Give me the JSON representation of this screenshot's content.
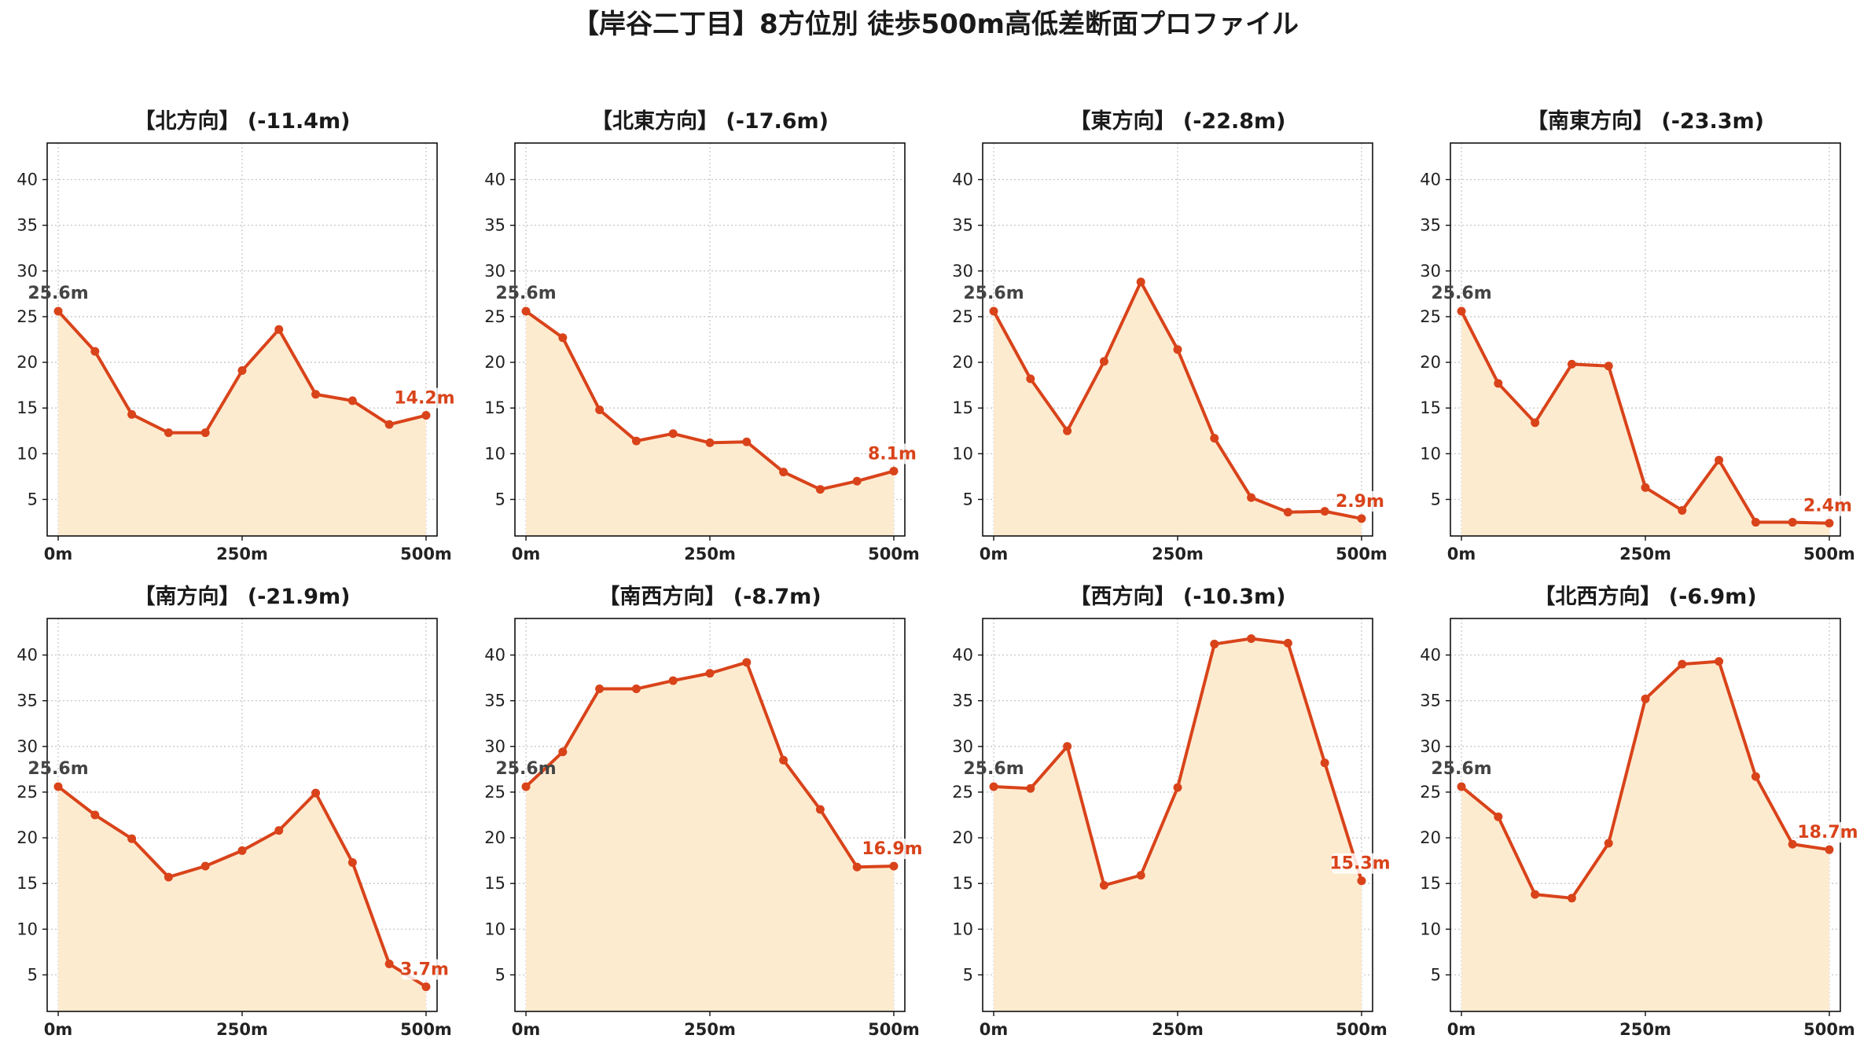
{
  "title": "【岸谷二丁目】8方位別 徒歩500m高低差断面プロファイル",
  "colors": {
    "line": "#d9431a",
    "fill": "#fdebd0",
    "grid": "#c8c8c8",
    "start_label": "#444444"
  },
  "chart_data": [
    {
      "type": "area",
      "title": "【北方向】 (-11.4m)",
      "x": [
        0,
        50,
        100,
        150,
        200,
        250,
        300,
        350,
        400,
        450,
        500
      ],
      "y": [
        25.6,
        21.2,
        14.3,
        12.3,
        12.3,
        19.1,
        23.6,
        16.5,
        15.8,
        13.2,
        14.2
      ],
      "x_ticks": [
        "0m",
        "250m",
        "500m"
      ],
      "y_ticks": [
        5,
        10,
        15,
        20,
        25,
        30,
        35,
        40
      ],
      "ylim": [
        1,
        44
      ],
      "xlim": [
        -15,
        515
      ],
      "grid": true,
      "start_label": "25.6m",
      "end_label": "14.2m"
    },
    {
      "type": "area",
      "title": "【北東方向】 (-17.6m)",
      "x": [
        0,
        50,
        100,
        150,
        200,
        250,
        300,
        350,
        400,
        450,
        500
      ],
      "y": [
        25.6,
        22.7,
        14.8,
        11.4,
        12.2,
        11.2,
        11.3,
        8.0,
        6.1,
        7.0,
        8.1
      ],
      "x_ticks": [
        "0m",
        "250m",
        "500m"
      ],
      "y_ticks": [
        5,
        10,
        15,
        20,
        25,
        30,
        35,
        40
      ],
      "ylim": [
        1,
        44
      ],
      "xlim": [
        -15,
        515
      ],
      "grid": true,
      "start_label": "25.6m",
      "end_label": "8.1m"
    },
    {
      "type": "area",
      "title": "【東方向】 (-22.8m)",
      "x": [
        0,
        50,
        100,
        150,
        200,
        250,
        300,
        350,
        400,
        450,
        500
      ],
      "y": [
        25.6,
        18.2,
        12.5,
        20.1,
        28.8,
        21.4,
        11.7,
        5.2,
        3.6,
        3.7,
        2.9
      ],
      "x_ticks": [
        "0m",
        "250m",
        "500m"
      ],
      "y_ticks": [
        5,
        10,
        15,
        20,
        25,
        30,
        35,
        40
      ],
      "ylim": [
        1,
        44
      ],
      "xlim": [
        -15,
        515
      ],
      "grid": true,
      "start_label": "25.6m",
      "end_label": "2.9m"
    },
    {
      "type": "area",
      "title": "【南東方向】 (-23.3m)",
      "x": [
        0,
        50,
        100,
        150,
        200,
        250,
        300,
        350,
        400,
        450,
        500
      ],
      "y": [
        25.6,
        17.7,
        13.4,
        19.8,
        19.6,
        6.3,
        3.8,
        9.3,
        2.5,
        2.5,
        2.4
      ],
      "x_ticks": [
        "0m",
        "250m",
        "500m"
      ],
      "y_ticks": [
        5,
        10,
        15,
        20,
        25,
        30,
        35,
        40
      ],
      "ylim": [
        1,
        44
      ],
      "xlim": [
        -15,
        515
      ],
      "grid": true,
      "start_label": "25.6m",
      "end_label": "2.4m"
    },
    {
      "type": "area",
      "title": "【南方向】 (-21.9m)",
      "x": [
        0,
        50,
        100,
        150,
        200,
        250,
        300,
        350,
        400,
        450,
        500
      ],
      "y": [
        25.6,
        22.5,
        19.9,
        15.7,
        16.9,
        18.6,
        20.8,
        24.9,
        17.3,
        6.2,
        3.7
      ],
      "x_ticks": [
        "0m",
        "250m",
        "500m"
      ],
      "y_ticks": [
        5,
        10,
        15,
        20,
        25,
        30,
        35,
        40
      ],
      "ylim": [
        1,
        44
      ],
      "xlim": [
        -15,
        515
      ],
      "grid": true,
      "start_label": "25.6m",
      "end_label": "3.7m"
    },
    {
      "type": "area",
      "title": "【南西方向】 (-8.7m)",
      "x": [
        0,
        50,
        100,
        150,
        200,
        250,
        300,
        350,
        400,
        450,
        500
      ],
      "y": [
        25.6,
        29.4,
        36.3,
        36.3,
        37.2,
        38.0,
        39.2,
        28.5,
        23.1,
        16.8,
        16.9
      ],
      "x_ticks": [
        "0m",
        "250m",
        "500m"
      ],
      "y_ticks": [
        5,
        10,
        15,
        20,
        25,
        30,
        35,
        40
      ],
      "ylim": [
        1,
        44
      ],
      "xlim": [
        -15,
        515
      ],
      "grid": true,
      "start_label": "25.6m",
      "end_label": "16.9m"
    },
    {
      "type": "area",
      "title": "【西方向】 (-10.3m)",
      "x": [
        0,
        50,
        100,
        150,
        200,
        250,
        300,
        350,
        400,
        450,
        500
      ],
      "y": [
        25.6,
        25.4,
        30.0,
        14.8,
        15.9,
        25.5,
        41.2,
        41.8,
        41.3,
        28.2,
        15.3
      ],
      "x_ticks": [
        "0m",
        "250m",
        "500m"
      ],
      "y_ticks": [
        5,
        10,
        15,
        20,
        25,
        30,
        35,
        40
      ],
      "ylim": [
        1,
        44
      ],
      "xlim": [
        -15,
        515
      ],
      "grid": true,
      "start_label": "25.6m",
      "end_label": "15.3m"
    },
    {
      "type": "area",
      "title": "【北西方向】 (-6.9m)",
      "x": [
        0,
        50,
        100,
        150,
        200,
        250,
        300,
        350,
        400,
        450,
        500
      ],
      "y": [
        25.6,
        22.3,
        13.8,
        13.4,
        19.4,
        35.2,
        39.0,
        39.3,
        26.7,
        19.3,
        18.7
      ],
      "x_ticks": [
        "0m",
        "250m",
        "500m"
      ],
      "y_ticks": [
        5,
        10,
        15,
        20,
        25,
        30,
        35,
        40
      ],
      "ylim": [
        1,
        44
      ],
      "xlim": [
        -15,
        515
      ],
      "grid": true,
      "start_label": "25.6m",
      "end_label": "18.7m"
    }
  ]
}
